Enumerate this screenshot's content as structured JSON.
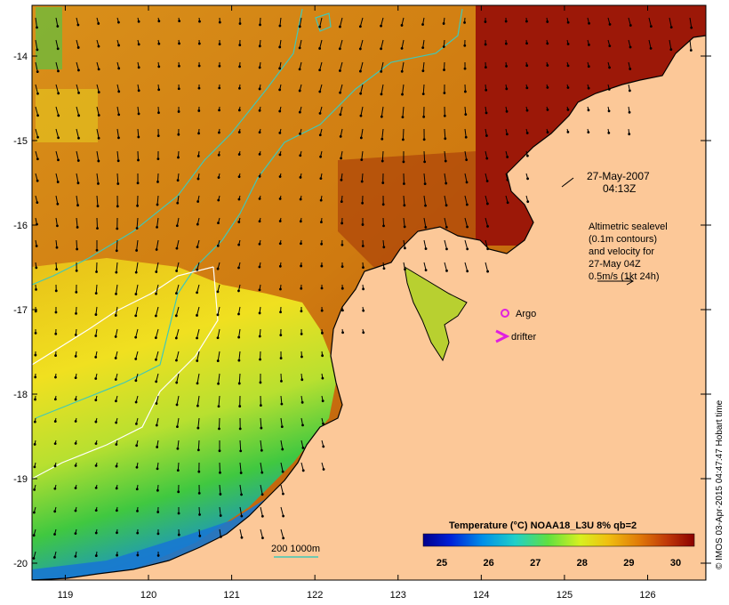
{
  "map": {
    "lon_ticks": [
      "119",
      "120",
      "121",
      "122",
      "123",
      "124",
      "125",
      "126"
    ],
    "lat_ticks": [
      "-14",
      "-15",
      "-16",
      "-17",
      "-18",
      "-19",
      "-20"
    ],
    "lon_range": [
      118.6,
      126.7
    ],
    "lat_range": [
      -20.2,
      -13.4
    ]
  },
  "annotations": {
    "datetime_line1": "27-May-2007",
    "datetime_line2": "04:13Z",
    "altimetry_lines": [
      "Altimetric sealevel",
      "(0.1m contours)",
      "and velocity for",
      "27-May 04Z",
      "0.5m/s (1kt 24h)"
    ],
    "argo_label": "Argo",
    "drifter_label": "drifter",
    "isobath_label": "200  1000m"
  },
  "colorbar": {
    "title": "Temperature (°C) NOAA18_L3U 8% qb=2",
    "ticks": [
      "25",
      "26",
      "27",
      "28",
      "29",
      "30"
    ],
    "range": [
      24.6,
      30.4
    ]
  },
  "credit": "© IMOS 03-Apr-2015 04:47:47 Hobart time",
  "colors": {
    "land": "#fcc898",
    "isobath_200": "#40c8b8",
    "isobath_1000": "#ffffff",
    "argo": "#e020e0",
    "drifter": "#e020e0"
  }
}
